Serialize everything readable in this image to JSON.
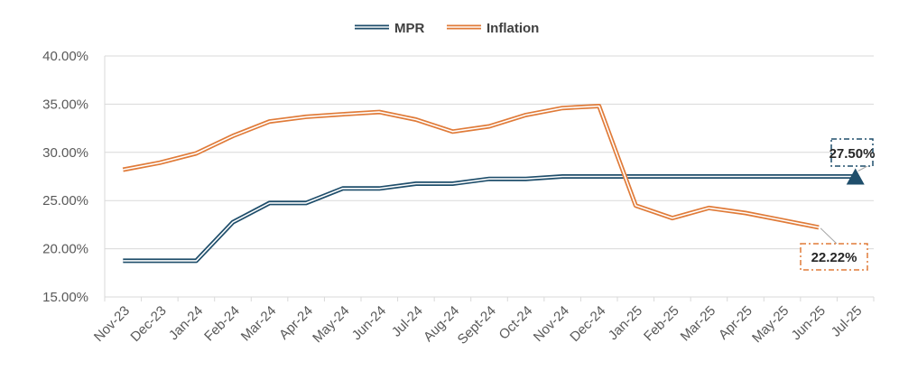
{
  "chart_data": {
    "type": "line",
    "title": "",
    "xlabel": "",
    "ylabel": "",
    "categories": [
      "Nov-23",
      "Dec-23",
      "Jan-24",
      "Feb-24",
      "Mar-24",
      "Apr-24",
      "May-24",
      "Jun-24",
      "Jul-24",
      "Aug-24",
      "Sept-24",
      "Oct-24",
      "Nov-24",
      "Dec-24",
      "Jan-25",
      "Feb-25",
      "Mar-25",
      "Apr-25",
      "May-25",
      "Jun-25",
      "Jul-25"
    ],
    "ylim": [
      15,
      40
    ],
    "yticks": [
      15,
      20,
      25,
      30,
      35,
      40
    ],
    "ytick_labels": [
      "15.00%",
      "20.00%",
      "25.00%",
      "30.00%",
      "35.00%",
      "40.00%"
    ],
    "grid": true,
    "legend": "top-center",
    "series": [
      {
        "name": "MPR",
        "color": "#1f4e6b",
        "values": [
          18.75,
          18.75,
          18.75,
          22.75,
          24.75,
          24.75,
          26.25,
          26.25,
          26.75,
          26.75,
          27.25,
          27.25,
          27.5,
          27.5,
          27.5,
          27.5,
          27.5,
          27.5,
          27.5,
          27.5,
          27.5
        ]
      },
      {
        "name": "Inflation",
        "color": "#e07b39",
        "values": [
          28.2,
          28.92,
          29.9,
          31.7,
          33.2,
          33.69,
          33.95,
          34.19,
          33.4,
          32.15,
          32.7,
          33.88,
          34.6,
          34.8,
          24.48,
          23.18,
          24.23,
          23.71,
          22.97,
          22.22,
          null
        ]
      }
    ],
    "annotations": [
      {
        "series": "MPR",
        "label": "27.50%",
        "category": "Jul-25",
        "value": 27.5
      },
      {
        "series": "Inflation",
        "label": "22.22%",
        "category": "Jun-25",
        "value": 22.22
      }
    ]
  }
}
